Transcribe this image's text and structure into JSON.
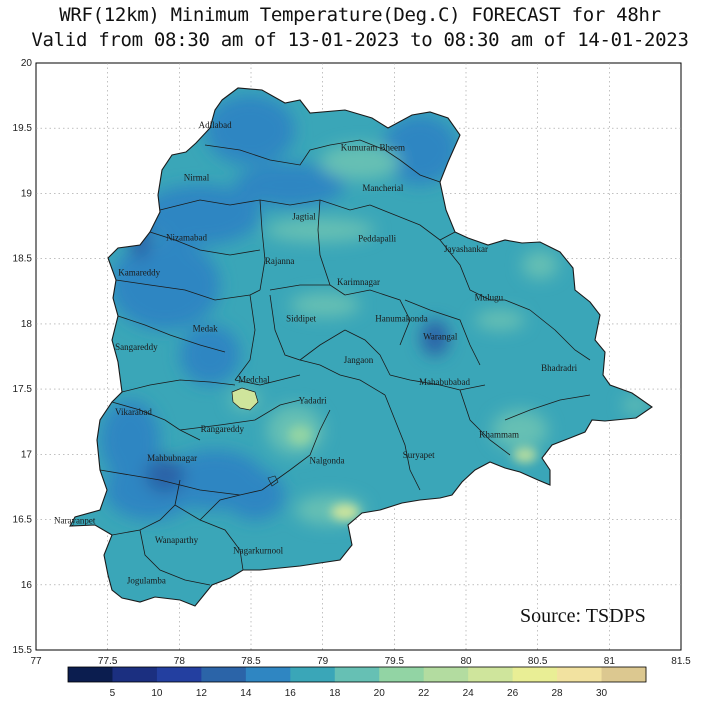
{
  "title_line1": "WRF(12km) Minimum Temperature(Deg.C) FORECAST for 48hr",
  "title_line2": "Valid from 08:30 am of  13-01-2023 to 08:30 am of 14-01-2023",
  "source": "Source: TSDPS",
  "x_ticks": [
    "77",
    "77.5",
    "78",
    "78.5",
    "79",
    "79.5",
    "80",
    "80.5",
    "81",
    "81.5"
  ],
  "y_ticks": [
    "20",
    "19.5",
    "19",
    "18.5",
    "18",
    "17.5",
    "17",
    "16.5",
    "16",
    "15.5"
  ],
  "lon_range": [
    77,
    81.5
  ],
  "lat_range": [
    15.5,
    20
  ],
  "colorbar": {
    "labels": [
      "5",
      "10",
      "12",
      "14",
      "16",
      "18",
      "20",
      "22",
      "24",
      "26",
      "28",
      "30"
    ],
    "colors": [
      "#0b1d4f",
      "#1b2f80",
      "#233fa0",
      "#2b64a8",
      "#2f86c2",
      "#3aa6b8",
      "#66c0b4",
      "#92d4a4",
      "#b3dca0",
      "#cfe59c",
      "#e9ee95",
      "#f2e2a0",
      "#dcc890"
    ]
  },
  "districts": [
    {
      "name": "Adilabad",
      "lon": 78.25,
      "lat": 19.5
    },
    {
      "name": "Kumuram Bheem",
      "lon": 79.35,
      "lat": 19.33
    },
    {
      "name": "Nirmal",
      "lon": 78.12,
      "lat": 19.1
    },
    {
      "name": "Mancherial",
      "lon": 79.42,
      "lat": 19.02
    },
    {
      "name": "Jagtial",
      "lon": 78.87,
      "lat": 18.8
    },
    {
      "name": "Nizamabad",
      "lon": 78.05,
      "lat": 18.64
    },
    {
      "name": "Peddapalli",
      "lon": 79.38,
      "lat": 18.63
    },
    {
      "name": "Jayashankar",
      "lon": 80.0,
      "lat": 18.55
    },
    {
      "name": "Rajanna",
      "lon": 78.7,
      "lat": 18.46
    },
    {
      "name": "Kamareddy",
      "lon": 77.72,
      "lat": 18.37
    },
    {
      "name": "Karimnagar",
      "lon": 79.25,
      "lat": 18.3
    },
    {
      "name": "Mulugu",
      "lon": 80.16,
      "lat": 18.18
    },
    {
      "name": "Siddipet",
      "lon": 78.85,
      "lat": 18.02
    },
    {
      "name": "Hanumakonda",
      "lon": 79.55,
      "lat": 18.02
    },
    {
      "name": "Medak",
      "lon": 78.18,
      "lat": 17.94
    },
    {
      "name": "Warangal",
      "lon": 79.82,
      "lat": 17.88
    },
    {
      "name": "Sangareddy",
      "lon": 77.7,
      "lat": 17.8
    },
    {
      "name": "Bhadradri",
      "lon": 80.65,
      "lat": 17.64
    },
    {
      "name": "Jangaon",
      "lon": 79.25,
      "lat": 17.7
    },
    {
      "name": "Medchal",
      "lon": 78.52,
      "lat": 17.55
    },
    {
      "name": "Mahabubabad",
      "lon": 79.85,
      "lat": 17.53
    },
    {
      "name": "Yadadri",
      "lon": 78.93,
      "lat": 17.39
    },
    {
      "name": "Vikarabad",
      "lon": 77.68,
      "lat": 17.3
    },
    {
      "name": "Rangareddy",
      "lon": 78.3,
      "lat": 17.17
    },
    {
      "name": "Khammam",
      "lon": 80.23,
      "lat": 17.13
    },
    {
      "name": "Suryapet",
      "lon": 79.67,
      "lat": 16.97
    },
    {
      "name": "Mahbubnagar",
      "lon": 77.95,
      "lat": 16.95
    },
    {
      "name": "Nalgonda",
      "lon": 79.03,
      "lat": 16.93
    },
    {
      "name": "Narayanpet",
      "lon": 77.27,
      "lat": 16.47
    },
    {
      "name": "Wanaparthy",
      "lon": 77.98,
      "lat": 16.32
    },
    {
      "name": "Nagarkurnool",
      "lon": 78.55,
      "lat": 16.24
    },
    {
      "name": "Jogulamba",
      "lon": 77.77,
      "lat": 16.01
    }
  ]
}
